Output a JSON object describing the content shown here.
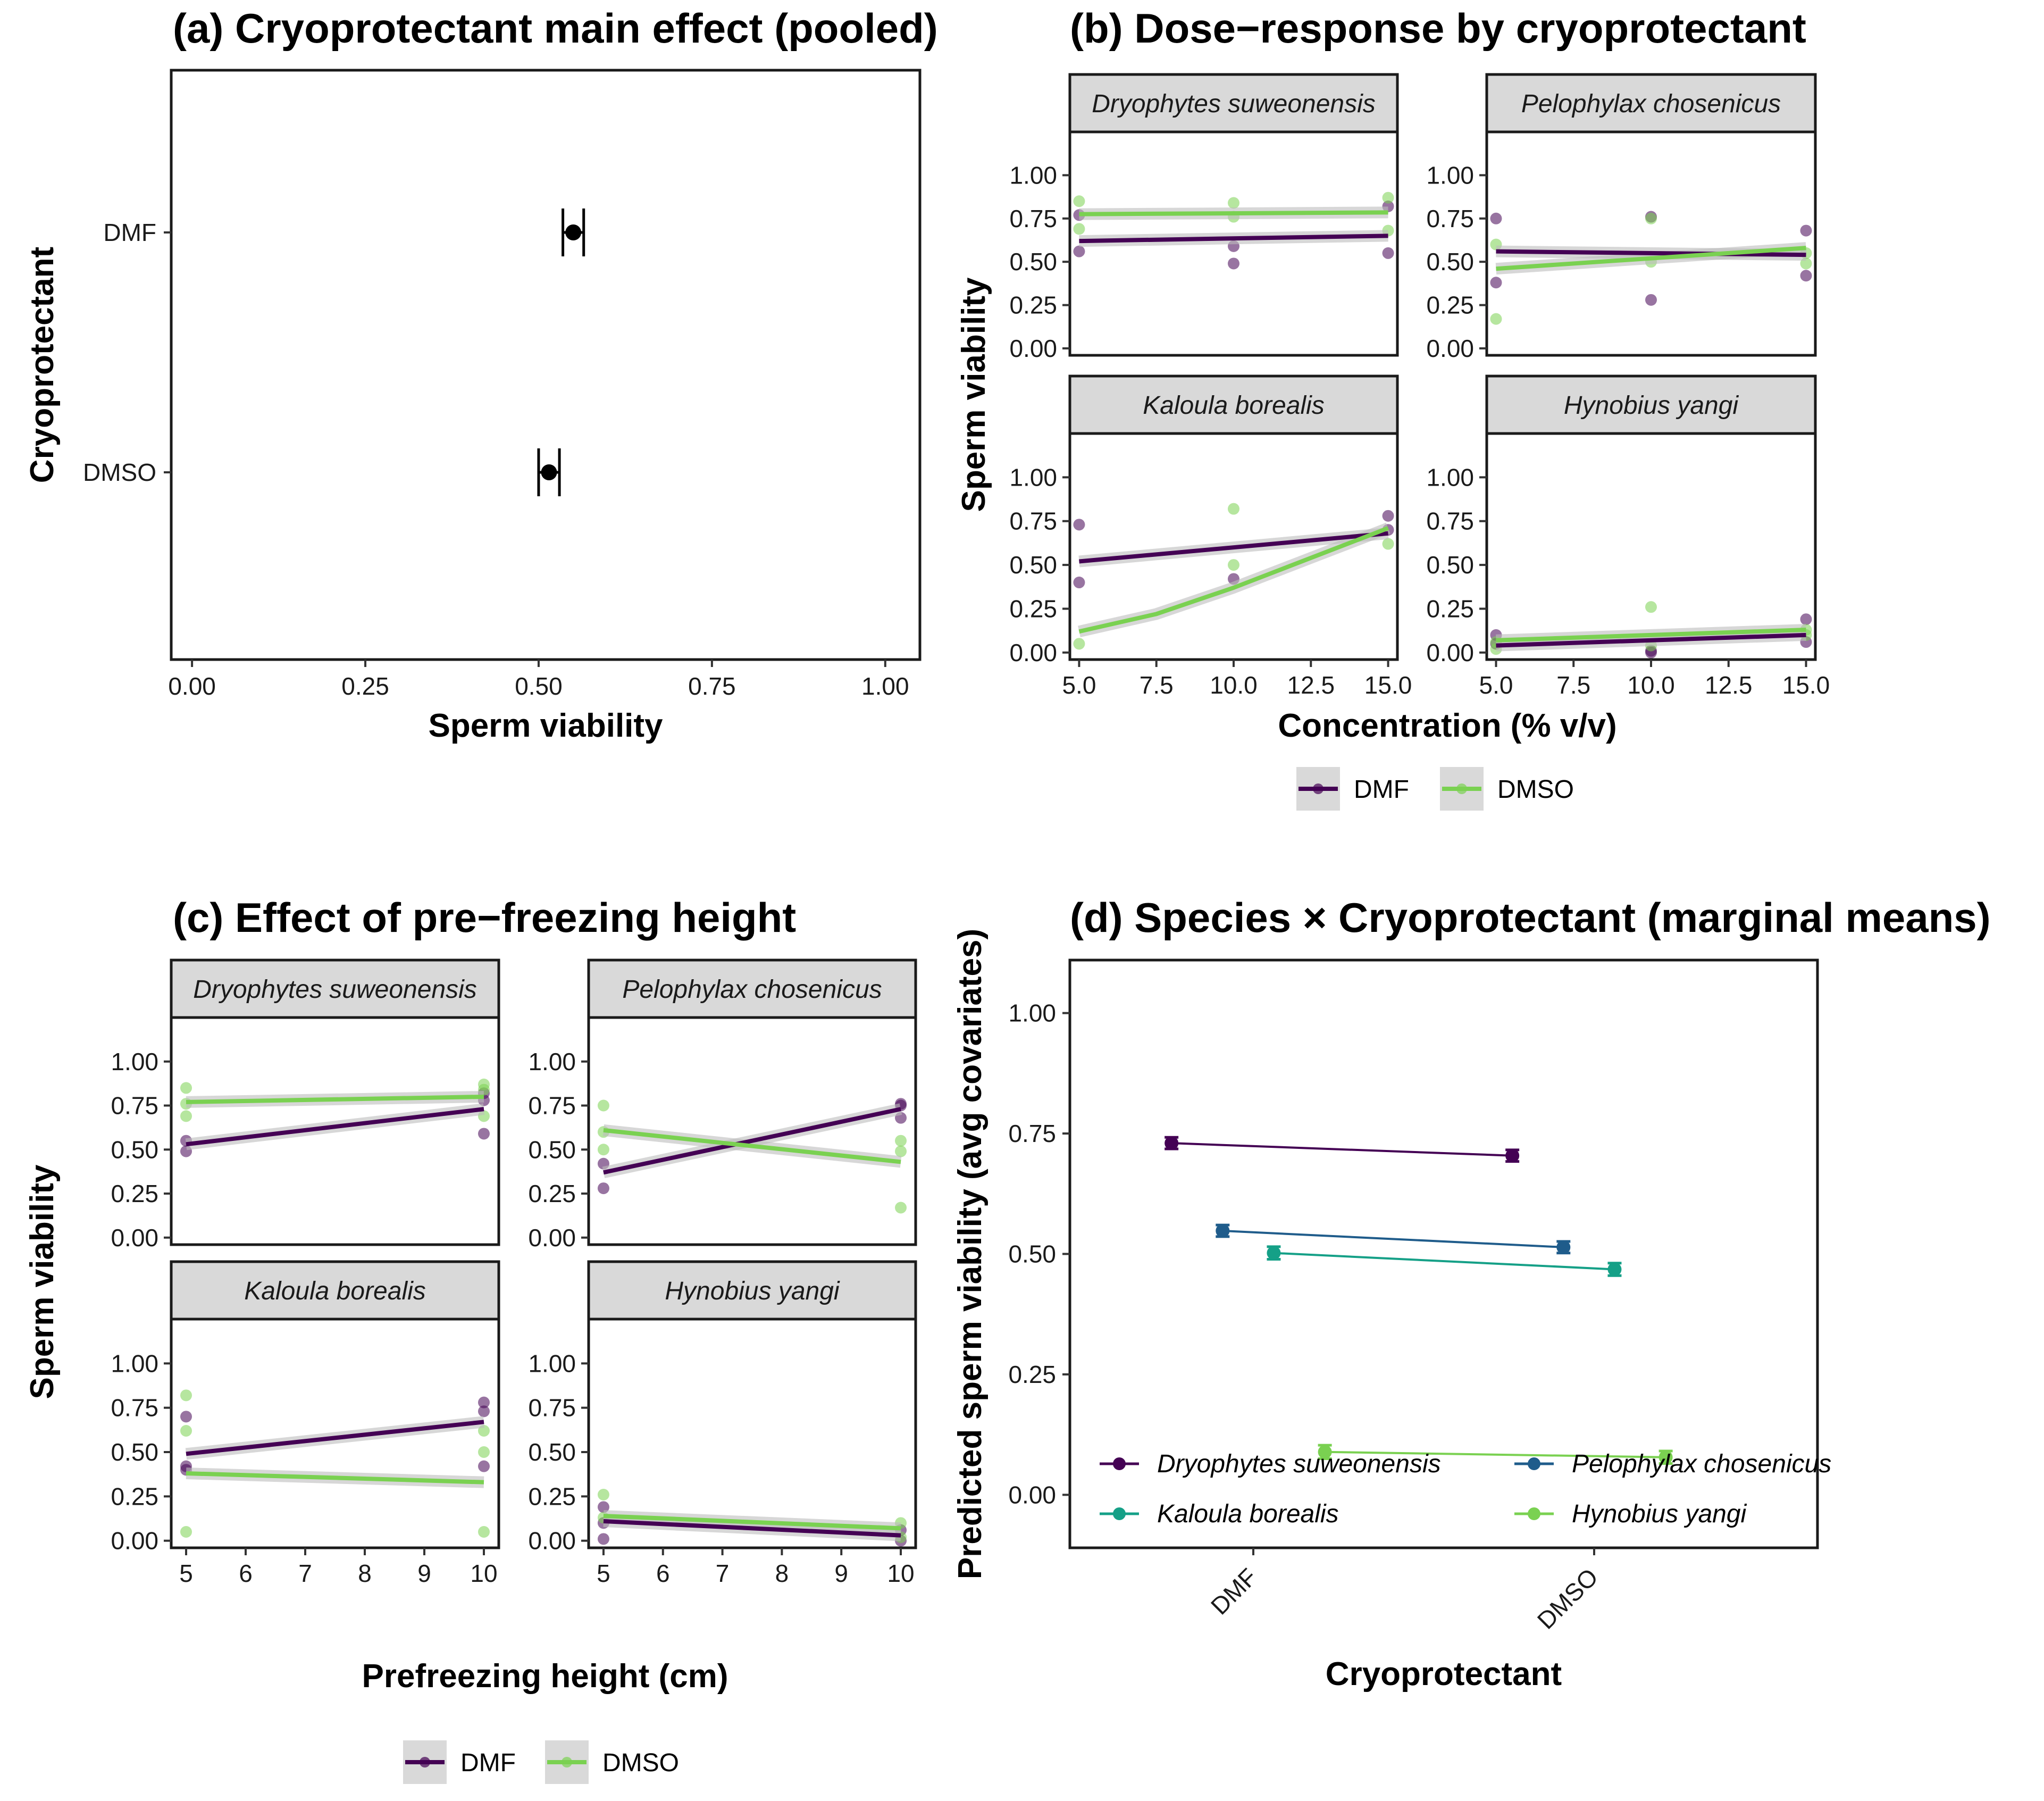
{
  "legend_cryo": [
    "DMF",
    "DMSO"
  ],
  "colors": {
    "DMF": "#440154",
    "DMSO": "#7AD151",
    "Dryophytes suweonensis": "#440154",
    "Pelophylax chosenicus": "#1F5C8B",
    "Kaloula borealis": "#15A087",
    "Hynobius yangi": "#7AD151"
  },
  "chart_data": [
    {
      "type": "scatter",
      "panel": "a",
      "title": "(a) Cryoprotectant main effect (pooled)",
      "xlabel": "Sperm viability",
      "ylabel": "Cryoprotectant",
      "xlim": [
        -0.03,
        1.05
      ],
      "x_ticks": [
        "0.00",
        "0.25",
        "0.50",
        "0.75",
        "1.00"
      ],
      "x_tick_values": [
        0,
        0.25,
        0.5,
        0.75,
        1.0
      ],
      "categories": [
        "DMF",
        "DMSO"
      ],
      "values": [
        0.55,
        0.515
      ],
      "error_low": [
        0.535,
        0.5
      ],
      "error_high": [
        0.565,
        0.53
      ]
    },
    {
      "type": "scatter",
      "panel": "b",
      "title": "(b) Dose−response by cryoprotectant",
      "xlabel": "Concentration (% v/v)",
      "ylabel": "Sperm viability",
      "xlim": [
        4.7,
        15.3
      ],
      "ylim": [
        -0.04,
        1.25
      ],
      "x_ticks": [
        "5.0",
        "7.5",
        "10.0",
        "12.5",
        "15.0"
      ],
      "x_tick_values": [
        5,
        7.5,
        10,
        12.5,
        15
      ],
      "y_ticks": [
        "0.00",
        "0.25",
        "0.50",
        "0.75",
        "1.00"
      ],
      "y_tick_values": [
        0,
        0.25,
        0.5,
        0.75,
        1.0
      ],
      "facets": [
        {
          "name": "Dryophytes suweonensis",
          "points": {
            "DMF": [
              [
                5,
                0.77
              ],
              [
                5,
                0.56
              ],
              [
                10,
                0.59
              ],
              [
                10,
                0.49
              ],
              [
                15,
                0.82
              ],
              [
                15,
                0.55
              ]
            ],
            "DMSO": [
              [
                5,
                0.85
              ],
              [
                5,
                0.69
              ],
              [
                10,
                0.84
              ],
              [
                10,
                0.76
              ],
              [
                15,
                0.87
              ],
              [
                15,
                0.68
              ]
            ]
          },
          "fit": {
            "DMF": [
              [
                5,
                0.62
              ],
              [
                15,
                0.65
              ]
            ],
            "DMSO": [
              [
                5,
                0.775
              ],
              [
                15,
                0.785
              ]
            ]
          }
        },
        {
          "name": "Pelophylax chosenicus",
          "points": {
            "DMF": [
              [
                5,
                0.75
              ],
              [
                5,
                0.38
              ],
              [
                10,
                0.76
              ],
              [
                10,
                0.28
              ],
              [
                15,
                0.68
              ],
              [
                15,
                0.42
              ]
            ],
            "DMSO": [
              [
                5,
                0.6
              ],
              [
                5,
                0.17
              ],
              [
                10,
                0.75
              ],
              [
                10,
                0.5
              ],
              [
                15,
                0.55
              ],
              [
                15,
                0.49
              ]
            ]
          },
          "fit": {
            "DMF": [
              [
                5,
                0.56
              ],
              [
                15,
                0.54
              ]
            ],
            "DMSO": [
              [
                5,
                0.46
              ],
              [
                15,
                0.58
              ]
            ]
          }
        },
        {
          "name": "Kaloula borealis",
          "points": {
            "DMF": [
              [
                5,
                0.73
              ],
              [
                5,
                0.4
              ],
              [
                10,
                0.42
              ],
              [
                15,
                0.78
              ],
              [
                15,
                0.7
              ]
            ],
            "DMSO": [
              [
                5,
                0.05
              ],
              [
                10,
                0.82
              ],
              [
                10,
                0.5
              ],
              [
                15,
                0.62
              ]
            ]
          },
          "fit": {
            "DMF": [
              [
                5,
                0.52
              ],
              [
                15,
                0.68
              ]
            ],
            "DMSO": [
              [
                5,
                0.12
              ],
              [
                7.5,
                0.22
              ],
              [
                10,
                0.37
              ],
              [
                12.5,
                0.54
              ],
              [
                15,
                0.71
              ]
            ]
          }
        },
        {
          "name": "Hynobius yangi",
          "points": {
            "DMF": [
              [
                5,
                0.1
              ],
              [
                5,
                0.05
              ],
              [
                10,
                0.01
              ],
              [
                10,
                0.0
              ],
              [
                15,
                0.19
              ],
              [
                15,
                0.06
              ]
            ],
            "DMSO": [
              [
                5,
                0.06
              ],
              [
                5,
                0.02
              ],
              [
                10,
                0.26
              ],
              [
                10,
                0.04
              ],
              [
                15,
                0.13
              ],
              [
                15,
                0.1
              ]
            ]
          },
          "fit": {
            "DMF": [
              [
                5,
                0.04
              ],
              [
                15,
                0.1
              ]
            ],
            "DMSO": [
              [
                5,
                0.07
              ],
              [
                15,
                0.13
              ]
            ]
          }
        }
      ]
    },
    {
      "type": "scatter",
      "panel": "c",
      "title": "(c) Effect of pre−freezing height",
      "xlabel": "Prefreezing height (cm)",
      "ylabel": "Sperm viability",
      "xlim": [
        4.75,
        10.25
      ],
      "ylim": [
        -0.04,
        1.25
      ],
      "x_ticks": [
        "5",
        "6",
        "7",
        "8",
        "9",
        "10"
      ],
      "x_tick_values": [
        5,
        6,
        7,
        8,
        9,
        10
      ],
      "y_ticks": [
        "0.00",
        "0.25",
        "0.50",
        "0.75",
        "1.00"
      ],
      "y_tick_values": [
        0,
        0.25,
        0.5,
        0.75,
        1.0
      ],
      "facets": [
        {
          "name": "Dryophytes suweonensis",
          "points": {
            "DMF": [
              [
                5,
                0.55
              ],
              [
                5,
                0.49
              ],
              [
                10,
                0.78
              ],
              [
                10,
                0.59
              ],
              [
                10,
                0.82
              ]
            ],
            "DMSO": [
              [
                5,
                0.85
              ],
              [
                5,
                0.76
              ],
              [
                5,
                0.69
              ],
              [
                10,
                0.87
              ],
              [
                10,
                0.84
              ],
              [
                10,
                0.69
              ]
            ]
          },
          "fit": {
            "DMF": [
              [
                5,
                0.53
              ],
              [
                10,
                0.73
              ]
            ],
            "DMSO": [
              [
                5,
                0.77
              ],
              [
                10,
                0.8
              ]
            ]
          }
        },
        {
          "name": "Pelophylax chosenicus",
          "points": {
            "DMF": [
              [
                5,
                0.42
              ],
              [
                5,
                0.28
              ],
              [
                10,
                0.76
              ],
              [
                10,
                0.68
              ],
              [
                10,
                0.75
              ]
            ],
            "DMSO": [
              [
                5,
                0.75
              ],
              [
                5,
                0.6
              ],
              [
                5,
                0.5
              ],
              [
                10,
                0.55
              ],
              [
                10,
                0.49
              ],
              [
                10,
                0.17
              ]
            ]
          },
          "fit": {
            "DMF": [
              [
                5,
                0.37
              ],
              [
                10,
                0.73
              ]
            ],
            "DMSO": [
              [
                5,
                0.61
              ],
              [
                10,
                0.43
              ]
            ]
          }
        },
        {
          "name": "Kaloula borealis",
          "points": {
            "DMF": [
              [
                5,
                0.7
              ],
              [
                5,
                0.42
              ],
              [
                5,
                0.4
              ],
              [
                10,
                0.78
              ],
              [
                10,
                0.73
              ],
              [
                10,
                0.42
              ]
            ],
            "DMSO": [
              [
                5,
                0.82
              ],
              [
                5,
                0.62
              ],
              [
                5,
                0.05
              ],
              [
                10,
                0.62
              ],
              [
                10,
                0.5
              ],
              [
                10,
                0.05
              ]
            ]
          },
          "fit": {
            "DMF": [
              [
                5,
                0.49
              ],
              [
                10,
                0.67
              ]
            ],
            "DMSO": [
              [
                5,
                0.38
              ],
              [
                10,
                0.33
              ]
            ]
          }
        },
        {
          "name": "Hynobius yangi",
          "points": {
            "DMF": [
              [
                5,
                0.19
              ],
              [
                5,
                0.1
              ],
              [
                5,
                0.01
              ],
              [
                10,
                0.06
              ],
              [
                10,
                0.0
              ]
            ],
            "DMSO": [
              [
                5,
                0.26
              ],
              [
                5,
                0.13
              ],
              [
                10,
                0.1
              ],
              [
                10,
                0.02
              ]
            ]
          },
          "fit": {
            "DMF": [
              [
                5,
                0.11
              ],
              [
                10,
                0.03
              ]
            ],
            "DMSO": [
              [
                5,
                0.14
              ],
              [
                10,
                0.07
              ]
            ]
          }
        }
      ]
    },
    {
      "type": "line",
      "panel": "d",
      "title": "(d) Species × Cryoprotectant (marginal means)",
      "xlabel": "Cryoprotectant",
      "ylabel": "Predicted sperm viability (avg covariates)",
      "ylim": [
        -0.11,
        1.11
      ],
      "y_ticks": [
        "0.00",
        "0.25",
        "0.50",
        "0.75",
        "1.00"
      ],
      "y_tick_values": [
        0,
        0.25,
        0.5,
        0.75,
        1.0
      ],
      "categories": [
        "DMF",
        "DMSO"
      ],
      "dodge": [
        -0.24,
        -0.09,
        0.06,
        0.21
      ],
      "series": [
        {
          "name": "Dryophytes suweonensis",
          "values": [
            0.73,
            0.704
          ],
          "error": [
            0.012,
            0.012
          ]
        },
        {
          "name": "Pelophylax chosenicus",
          "values": [
            0.548,
            0.514
          ],
          "error": [
            0.012,
            0.012
          ]
        },
        {
          "name": "Kaloula borealis",
          "values": [
            0.502,
            0.468
          ],
          "error": [
            0.013,
            0.013
          ]
        },
        {
          "name": "Hynobius yangi",
          "values": [
            0.089,
            0.078
          ],
          "error": [
            0.014,
            0.013
          ]
        }
      ]
    }
  ]
}
